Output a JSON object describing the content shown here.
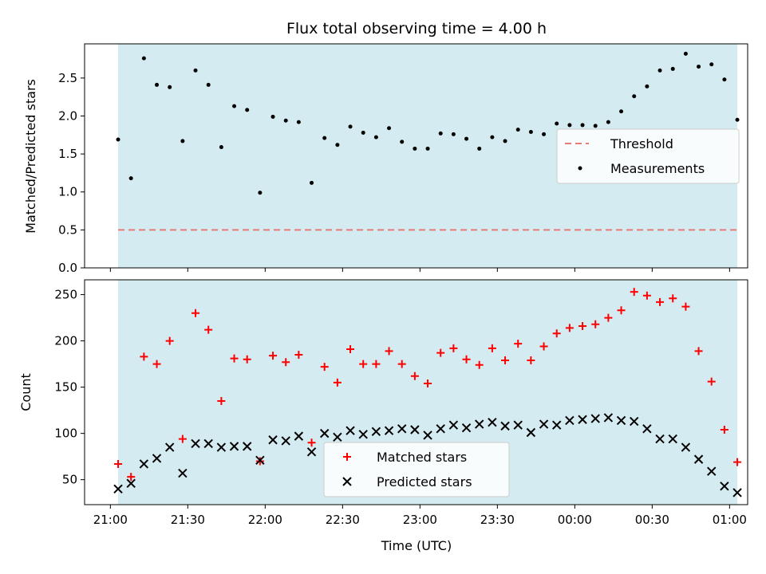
{
  "title": "Flux total observing time = 4.00 h",
  "colors": {
    "shade": "#d4ebf1",
    "threshold": "#e87b78",
    "measurements": "#000000",
    "matched": "#ff0000",
    "predicted": "#000000"
  },
  "chart_data": [
    {
      "type": "scatter",
      "ylabel": "Matched/Predicted stars",
      "ylim": [
        0,
        2.95
      ],
      "yticks": [
        0.0,
        0.5,
        1.0,
        1.5,
        2.0,
        2.5
      ],
      "ytick_labels": [
        "0.0",
        "0.5",
        "1.0",
        "1.5",
        "2.0",
        "2.5"
      ],
      "x_range_min": [
        -10,
        247
      ],
      "shaded_span_min": [
        3,
        243
      ],
      "threshold": 0.5,
      "legend": {
        "placement": "center-right",
        "entries": [
          "Threshold",
          "Measurements"
        ]
      },
      "series": [
        {
          "name": "Measurements",
          "marker": "dot",
          "x_min": [
            3,
            8,
            13,
            18,
            23,
            28,
            33,
            38,
            43,
            48,
            53,
            58,
            63,
            68,
            73,
            78,
            83,
            88,
            93,
            98,
            103,
            108,
            113,
            118,
            123,
            128,
            133,
            138,
            143,
            148,
            153,
            158,
            163,
            168,
            173,
            178,
            183,
            188,
            193,
            198,
            203,
            208,
            213,
            218,
            223,
            228,
            233,
            238,
            243
          ],
          "values": [
            1.69,
            1.18,
            2.76,
            2.41,
            2.38,
            1.67,
            2.6,
            2.41,
            1.59,
            2.13,
            2.08,
            0.99,
            1.99,
            1.94,
            1.92,
            1.12,
            1.71,
            1.62,
            1.86,
            1.78,
            1.72,
            1.84,
            1.66,
            1.57,
            1.57,
            1.77,
            1.76,
            1.7,
            1.57,
            1.72,
            1.67,
            1.82,
            1.79,
            1.76,
            1.9,
            1.88,
            1.88,
            1.87,
            1.92,
            2.06,
            2.26,
            2.39,
            2.6,
            2.62,
            2.82,
            2.65,
            2.68,
            2.48,
            1.95
          ]
        }
      ]
    },
    {
      "type": "scatter",
      "ylabel": "Count",
      "xlabel": "Time (UTC)",
      "ylim": [
        23,
        266
      ],
      "yticks": [
        50,
        100,
        150,
        200,
        250
      ],
      "ytick_labels": [
        "50",
        "100",
        "150",
        "200",
        "250"
      ],
      "xticks_min": [
        0,
        30,
        60,
        90,
        120,
        150,
        180,
        210,
        240
      ],
      "xtick_labels": [
        "21:00",
        "21:30",
        "22:00",
        "22:30",
        "23:00",
        "23:30",
        "00:00",
        "00:30",
        "01:00"
      ],
      "x_range_min": [
        -10,
        247
      ],
      "shaded_span_min": [
        3,
        243
      ],
      "legend": {
        "placement": "lower-center",
        "entries": [
          "Matched stars",
          "Predicted stars"
        ]
      },
      "series": [
        {
          "name": "Matched stars",
          "marker": "plus",
          "x_min": [
            3,
            8,
            13,
            18,
            23,
            28,
            33,
            38,
            43,
            48,
            53,
            58,
            63,
            68,
            73,
            78,
            83,
            88,
            93,
            98,
            103,
            108,
            113,
            118,
            123,
            128,
            133,
            138,
            143,
            148,
            153,
            158,
            163,
            168,
            173,
            178,
            183,
            188,
            193,
            198,
            203,
            208,
            213,
            218,
            223,
            228,
            233,
            238,
            243
          ],
          "values": [
            67,
            53,
            183,
            175,
            200,
            94,
            230,
            212,
            135,
            181,
            180,
            70,
            184,
            177,
            185,
            90,
            172,
            155,
            191,
            175,
            175,
            189,
            175,
            162,
            154,
            187,
            192,
            180,
            174,
            192,
            179,
            197,
            179,
            194,
            208,
            214,
            216,
            218,
            225,
            233,
            253,
            249,
            242,
            246,
            237,
            189,
            156,
            104,
            69
          ]
        },
        {
          "name": "Predicted stars",
          "marker": "x",
          "x_min": [
            3,
            8,
            13,
            18,
            23,
            28,
            33,
            38,
            43,
            48,
            53,
            58,
            63,
            68,
            73,
            78,
            83,
            88,
            93,
            98,
            103,
            108,
            113,
            118,
            123,
            128,
            133,
            138,
            143,
            148,
            153,
            158,
            163,
            168,
            173,
            178,
            183,
            188,
            193,
            198,
            203,
            208,
            213,
            218,
            223,
            228,
            233,
            238,
            243
          ],
          "values": [
            40,
            46,
            67,
            73,
            85,
            57,
            89,
            89,
            85,
            86,
            86,
            71,
            93,
            92,
            97,
            80,
            100,
            96,
            103,
            99,
            102,
            103,
            105,
            104,
            98,
            105,
            109,
            106,
            110,
            112,
            108,
            109,
            101,
            110,
            109,
            114,
            115,
            116,
            117,
            114,
            113,
            105,
            94,
            94,
            85,
            72,
            59,
            43,
            36
          ]
        }
      ]
    }
  ]
}
